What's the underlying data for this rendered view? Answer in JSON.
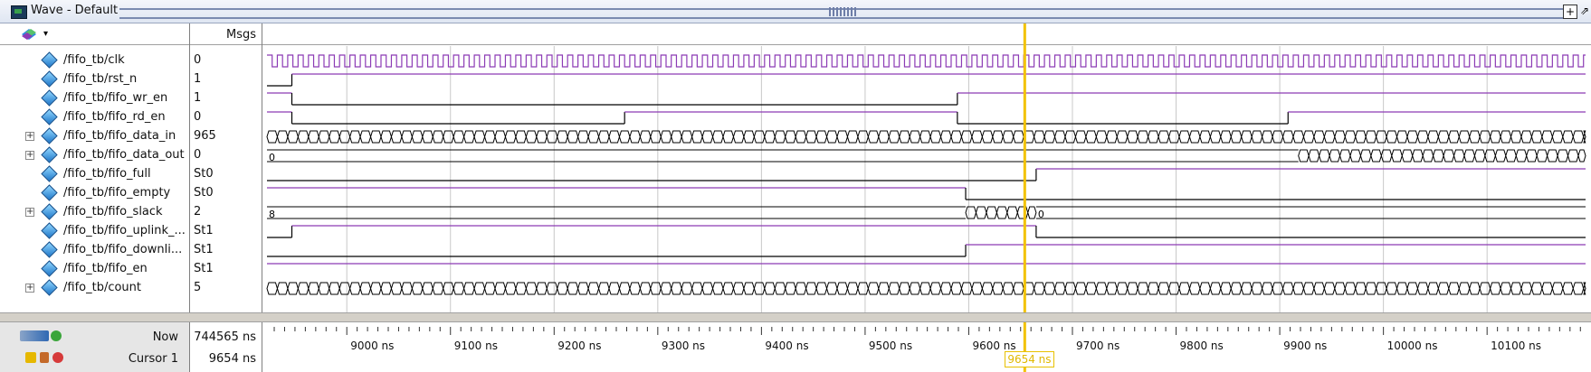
{
  "window": {
    "title": "Wave - Default"
  },
  "header": {
    "msgs_label": "Msgs"
  },
  "signals": [
    {
      "name": "/fifo_tb/clk",
      "value": "0",
      "expandable": false
    },
    {
      "name": "/fifo_tb/rst_n",
      "value": "1",
      "expandable": false
    },
    {
      "name": "/fifo_tb/fifo_wr_en",
      "value": "1",
      "expandable": false
    },
    {
      "name": "/fifo_tb/fifo_rd_en",
      "value": "0",
      "expandable": false
    },
    {
      "name": "/fifo_tb/fifo_data_in",
      "value": "965",
      "expandable": true
    },
    {
      "name": "/fifo_tb/fifo_data_out",
      "value": "0",
      "expandable": true
    },
    {
      "name": "/fifo_tb/fifo_full",
      "value": "St0",
      "expandable": false
    },
    {
      "name": "/fifo_tb/fifo_empty",
      "value": "St0",
      "expandable": false
    },
    {
      "name": "/fifo_tb/fifo_slack",
      "value": "2",
      "expandable": true
    },
    {
      "name": "/fifo_tb/fifo_uplink_...",
      "value": "St1",
      "expandable": false
    },
    {
      "name": "/fifo_tb/fifo_downli...",
      "value": "St1",
      "expandable": false
    },
    {
      "name": "/fifo_tb/fifo_en",
      "value": "St1",
      "expandable": false
    },
    {
      "name": "/fifo_tb/count",
      "value": "5",
      "expandable": true
    }
  ],
  "waveforms": {
    "time_start_ns": 8923,
    "time_end_ns": 10195,
    "clk_period_ns": 10,
    "rst_n": {
      "type": "step",
      "edges": [
        {
          "t": 8947,
          "v": 1
        }
      ],
      "init": 0
    },
    "fifo_wr_en": {
      "type": "step",
      "init": 1,
      "edges": [
        {
          "t": 8947,
          "v": 0
        },
        {
          "t": 9589,
          "v": 1
        }
      ]
    },
    "fifo_rd_en": {
      "type": "step",
      "init": 1,
      "edges": [
        {
          "t": 8947,
          "v": 0
        },
        {
          "t": 9268,
          "v": 1
        },
        {
          "t": 9589,
          "v": 0
        },
        {
          "t": 9908,
          "v": 1
        }
      ]
    },
    "fifo_data_in": {
      "type": "bus_toggle",
      "start": 8923,
      "end": 10195
    },
    "fifo_data_out": {
      "type": "bus",
      "segments": [
        {
          "from": 8923,
          "to": 9918,
          "label": "0"
        }
      ],
      "toggle_from": 9918
    },
    "fifo_full": {
      "type": "step",
      "init": 0,
      "edges": [
        {
          "t": 9665,
          "v": 1
        }
      ]
    },
    "fifo_empty": {
      "type": "step",
      "init": 1,
      "edges": [
        {
          "t": 9597,
          "v": 0
        }
      ]
    },
    "fifo_slack": {
      "type": "bus",
      "segments": [
        {
          "from": 8923,
          "to": 9597,
          "label": "8"
        },
        {
          "from": 9665,
          "to": 10195,
          "label": "0"
        }
      ],
      "toggle_from": 9597,
      "toggle_to": 9665
    },
    "fifo_uplink": {
      "type": "step",
      "init": 0,
      "edges": [
        {
          "t": 8947,
          "v": 1
        },
        {
          "t": 9665,
          "v": 0
        }
      ]
    },
    "fifo_downlink": {
      "type": "step",
      "init": 0,
      "edges": [
        {
          "t": 9597,
          "v": 1
        }
      ]
    },
    "fifo_en": {
      "type": "step",
      "init": 1,
      "edges": []
    },
    "count": {
      "type": "bus_toggle",
      "start": 8923,
      "end": 10195
    }
  },
  "timeline": {
    "ticks": [
      "9000 ns",
      "9100 ns",
      "9200 ns",
      "9300 ns",
      "9400 ns",
      "9500 ns",
      "9600 ns",
      "9700 ns",
      "9800 ns",
      "9900 ns",
      "10000 ns",
      "10100 ns"
    ],
    "tick_values_ns": [
      9000,
      9100,
      9200,
      9300,
      9400,
      9500,
      9600,
      9700,
      9800,
      9900,
      10000,
      10100
    ]
  },
  "footer": {
    "now_label": "Now",
    "now_value": "744565 ns",
    "cursor_label": "Cursor 1",
    "cursor_value": "9654 ns",
    "cursor_ns": 9654,
    "cursor_marker_label": "9654 ns"
  },
  "colors": {
    "wave_high": "#8c3bb5",
    "wave_low": "#000000",
    "cursor": "#f2c200",
    "grid": "#c8c8c8"
  }
}
